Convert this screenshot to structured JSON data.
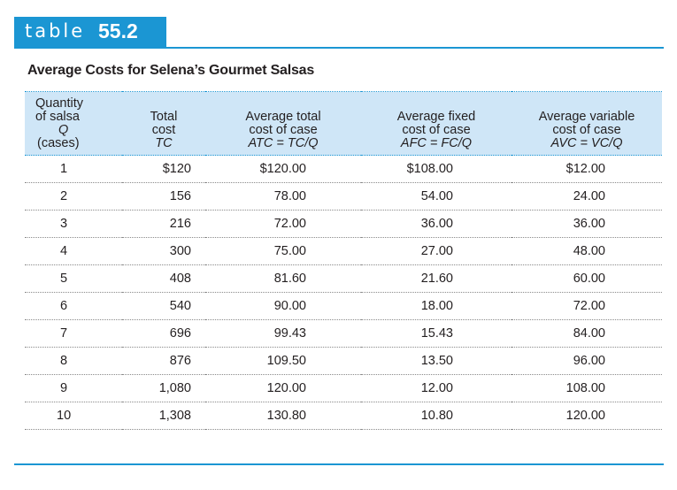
{
  "tag": {
    "word": "table",
    "number": "55.2"
  },
  "caption": "Average Costs for Selena’s Gourmet Salsas",
  "headers": {
    "q": [
      "Quantity",
      "of salsa",
      "Q",
      "(cases)"
    ],
    "tc": [
      "Total",
      "cost",
      "TC"
    ],
    "atc": [
      "Average total",
      "cost of case",
      "ATC = TC/Q"
    ],
    "afc": [
      "Average fixed",
      "cost of case",
      "AFC = FC/Q"
    ],
    "avc": [
      "Average variable",
      "cost of case",
      "AVC = VC/Q"
    ]
  },
  "rows": [
    {
      "q": "1",
      "tc": "$120",
      "atc": "$120.00",
      "afc": "$108.00",
      "avc": "$12.00"
    },
    {
      "q": "2",
      "tc": "156",
      "atc": "78.00",
      "afc": "54.00",
      "avc": "24.00"
    },
    {
      "q": "3",
      "tc": "216",
      "atc": "72.00",
      "afc": "36.00",
      "avc": "36.00"
    },
    {
      "q": "4",
      "tc": "300",
      "atc": "75.00",
      "afc": "27.00",
      "avc": "48.00"
    },
    {
      "q": "5",
      "tc": "408",
      "atc": "81.60",
      "afc": "21.60",
      "avc": "60.00"
    },
    {
      "q": "6",
      "tc": "540",
      "atc": "90.00",
      "afc": "18.00",
      "avc": "72.00"
    },
    {
      "q": "7",
      "tc": "696",
      "atc": "99.43",
      "afc": "15.43",
      "avc": "84.00"
    },
    {
      "q": "8",
      "tc": "876",
      "atc": "109.50",
      "afc": "13.50",
      "avc": "96.00"
    },
    {
      "q": "9",
      "tc": "1,080",
      "atc": "120.00",
      "afc": "12.00",
      "avc": "108.00"
    },
    {
      "q": "10",
      "tc": "1,308",
      "atc": "130.80",
      "afc": "10.80",
      "avc": "120.00"
    }
  ],
  "colors": {
    "accent": "#1b96d3",
    "header_fill": "#cfe6f7",
    "text": "#231f20"
  }
}
